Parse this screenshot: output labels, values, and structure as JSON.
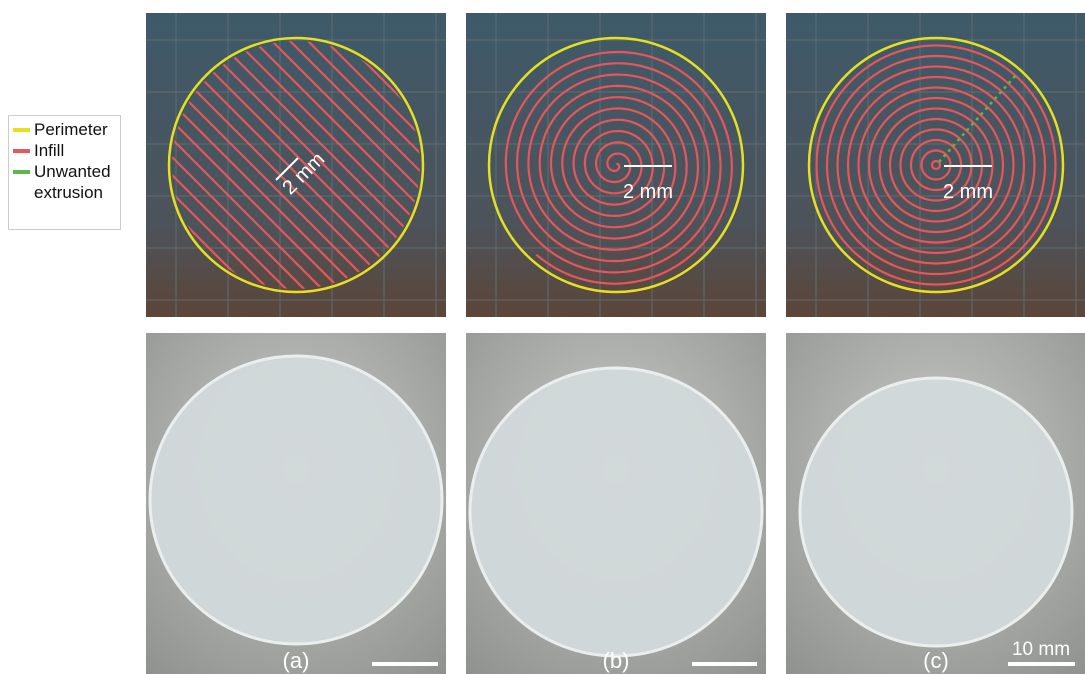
{
  "legend": {
    "items": [
      "Perimeter",
      "Infill",
      "Unwanted extrusion"
    ]
  },
  "toolpaths": [
    {
      "scale_label": "2 mm"
    },
    {
      "scale_label": "2 mm"
    },
    {
      "scale_label": "2 mm"
    }
  ],
  "photos": [
    {
      "label": "(a)"
    },
    {
      "label": "(b)"
    },
    {
      "label": "(c)"
    }
  ],
  "scale_bar": "10 mm"
}
